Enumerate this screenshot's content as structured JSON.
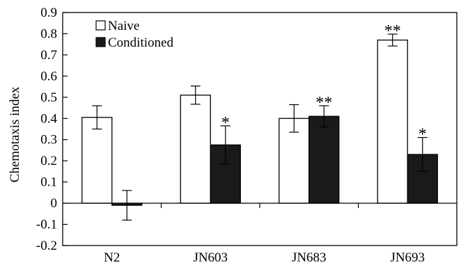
{
  "chart_data": {
    "type": "bar",
    "ylabel": "Chemotaxis index",
    "xlabel": "",
    "ylim": [
      -0.2,
      0.9
    ],
    "yticks": [
      -0.2,
      -0.1,
      0,
      0.1,
      0.2,
      0.3,
      0.4,
      0.5,
      0.6,
      0.7,
      0.8,
      0.9
    ],
    "ytick_labels": [
      "-0.2",
      "-0.1",
      "0",
      "0.1",
      "0.2",
      "0.3",
      "0.4",
      "0.5",
      "0.6",
      "0.7",
      "0.8",
      "0.9"
    ],
    "categories": [
      "N2",
      "JN603",
      "JN683",
      "JN693"
    ],
    "legend_position": "top-left",
    "grid": false,
    "series": [
      {
        "name": "Naive",
        "color": "#ffffff",
        "values": [
          0.405,
          0.51,
          0.4,
          0.77
        ],
        "errors": [
          0.055,
          0.043,
          0.065,
          0.028
        ],
        "significance": [
          "",
          "",
          "",
          "**"
        ]
      },
      {
        "name": "Conditioned",
        "color": "#1a1a1a",
        "values": [
          -0.01,
          0.275,
          0.41,
          0.23
        ],
        "errors": [
          0.07,
          0.09,
          0.05,
          0.08
        ],
        "significance": [
          "",
          "*",
          "**",
          "*"
        ]
      }
    ]
  }
}
